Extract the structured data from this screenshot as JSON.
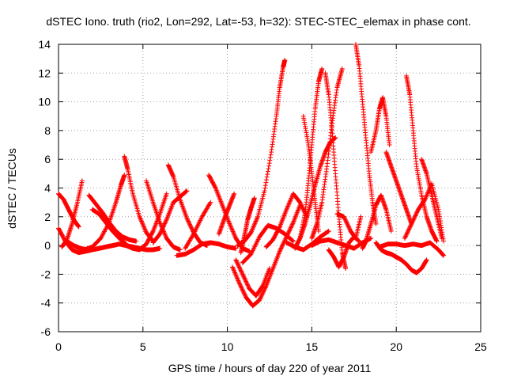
{
  "chart_data": {
    "type": "scatter",
    "title": "dSTEC Iono. truth (rio2, Lon=292, Lat=-53, h=32): STEC-STEC_elemax in phase cont.",
    "xlabel": "GPS time / hours of day 220 of year 2011",
    "ylabel": "dSTEC  / TECUs",
    "xlim": [
      0,
      25
    ],
    "ylim": [
      -6,
      14
    ],
    "xticks": [
      0,
      5,
      10,
      15,
      20,
      25
    ],
    "yticks": [
      -6,
      -4,
      -2,
      0,
      2,
      4,
      6,
      8,
      10,
      12,
      14
    ],
    "grid": true,
    "marker": "+",
    "color": "#ff0000",
    "series": [
      {
        "x": [
          0.0,
          0.3,
          0.6,
          0.9,
          1.2
        ],
        "y": [
          3.6,
          3.2,
          2.5,
          1.8,
          1.3
        ]
      },
      {
        "x": [
          0.0,
          0.4,
          0.8,
          1.2,
          1.6,
          2.0,
          2.4,
          2.8,
          3.2,
          3.6,
          4.0,
          4.4,
          4.8,
          5.2,
          5.6,
          6.0
        ],
        "y": [
          1.2,
          0.3,
          -0.3,
          -0.5,
          -0.4,
          -0.3,
          -0.2,
          -0.1,
          0.0,
          0.1,
          0.0,
          -0.1,
          -0.2,
          -0.3,
          -0.3,
          -0.2
        ]
      },
      {
        "x": [
          0.2,
          0.5,
          0.8,
          1.1,
          1.4
        ],
        "y": [
          -0.1,
          0.4,
          1.5,
          2.9,
          4.5
        ]
      },
      {
        "x": [
          0.5,
          0.9,
          1.3,
          1.7
        ],
        "y": [
          0.3,
          0.0,
          -0.2,
          -0.3
        ]
      },
      {
        "x": [
          1.8,
          2.2,
          2.6,
          3.0,
          3.4,
          3.8,
          4.2,
          4.6
        ],
        "y": [
          3.5,
          2.9,
          2.3,
          1.6,
          1.0,
          0.6,
          0.4,
          0.3
        ]
      },
      {
        "x": [
          1.5,
          2.0,
          2.5,
          3.0,
          3.4,
          3.7,
          3.9
        ],
        "y": [
          -0.3,
          -0.1,
          0.5,
          1.6,
          3.0,
          4.2,
          4.9
        ]
      },
      {
        "x": [
          2.0,
          2.4,
          2.8,
          3.2,
          3.6,
          4.0
        ],
        "y": [
          2.5,
          2.2,
          1.6,
          1.0,
          0.5,
          0.1
        ]
      },
      {
        "x": [
          3.9,
          4.1,
          4.4,
          4.8,
          5.2,
          5.6
        ],
        "y": [
          6.2,
          5.3,
          3.6,
          2.0,
          0.9,
          0.3
        ]
      },
      {
        "x": [
          4.0,
          4.4,
          4.8,
          5.2,
          5.6,
          6.0,
          6.4
        ],
        "y": [
          0.0,
          -0.2,
          -0.3,
          0.1,
          1.0,
          2.2,
          3.6
        ]
      },
      {
        "x": [
          5.2,
          5.6,
          6.0,
          6.4,
          6.8,
          7.2
        ],
        "y": [
          4.5,
          3.0,
          1.6,
          0.5,
          -0.1,
          -0.3
        ]
      },
      {
        "x": [
          5.6,
          6.0,
          6.4,
          6.8,
          7.2,
          7.6
        ],
        "y": [
          0.2,
          0.8,
          1.8,
          3.0,
          3.4,
          3.8
        ]
      },
      {
        "x": [
          6.5,
          6.8,
          7.2,
          7.6,
          8.0,
          8.4,
          8.8
        ],
        "y": [
          5.6,
          4.8,
          3.2,
          1.9,
          0.9,
          0.2,
          0.0
        ]
      },
      {
        "x": [
          7.0,
          7.5,
          8.0,
          8.5,
          9.0,
          9.5,
          10.0,
          10.5
        ],
        "y": [
          -0.7,
          -0.6,
          -0.3,
          0.1,
          0.2,
          0.1,
          -0.1,
          -0.2
        ]
      },
      {
        "x": [
          7.5,
          8.0,
          8.5,
          9.0
        ],
        "y": [
          -0.2,
          0.8,
          2.0,
          3.0
        ]
      },
      {
        "x": [
          8.9,
          9.3,
          9.7,
          10.1,
          10.5,
          10.9,
          11.3
        ],
        "y": [
          4.9,
          4.0,
          2.8,
          1.6,
          0.5,
          -0.2,
          -0.4
        ]
      },
      {
        "x": [
          9.5,
          9.8,
          10.1,
          10.4
        ],
        "y": [
          0.8,
          1.8,
          2.7,
          3.6
        ]
      },
      {
        "x": [
          10.3,
          10.7,
          11.1,
          11.5,
          11.9,
          12.3,
          12.7,
          13.1,
          13.5,
          13.9,
          14.3
        ],
        "y": [
          -1.5,
          -2.6,
          -3.6,
          -4.2,
          -3.8,
          -2.8,
          -1.6,
          -0.4,
          0.6,
          1.6,
          2.8
        ]
      },
      {
        "x": [
          10.5,
          10.9,
          11.3,
          11.7,
          12.1,
          12.5
        ],
        "y": [
          -1.0,
          -2.0,
          -3.0,
          -3.5,
          -2.8,
          -1.6
        ]
      },
      {
        "x": [
          10.8,
          11.0,
          11.2,
          11.4,
          11.6
        ],
        "y": [
          -0.5,
          0.6,
          1.8,
          2.6,
          3.3
        ]
      },
      {
        "x": [
          10.9,
          11.4,
          11.9,
          12.4,
          12.9,
          13.4,
          13.9
        ],
        "y": [
          -1.2,
          -0.6,
          0.6,
          1.4,
          1.2,
          0.8,
          0.3
        ]
      },
      {
        "x": [
          10.6,
          11.0,
          11.4,
          11.8,
          12.2,
          12.6,
          12.9,
          13.1,
          13.3,
          13.4
        ],
        "y": [
          0.0,
          0.3,
          0.9,
          2.0,
          3.8,
          6.5,
          9.0,
          11.0,
          12.4,
          12.9
        ]
      },
      {
        "x": [
          12.3,
          12.7,
          13.1,
          13.5,
          13.9,
          14.3,
          14.7
        ],
        "y": [
          -0.1,
          0.4,
          1.3,
          2.5,
          3.6,
          3.0,
          2.0
        ]
      },
      {
        "x": [
          14.0,
          14.3,
          14.6,
          14.8,
          15.0,
          15.2,
          15.4,
          15.6
        ],
        "y": [
          -0.2,
          0.5,
          2.2,
          4.5,
          7.0,
          9.5,
          11.4,
          12.3
        ]
      },
      {
        "x": [
          14.3,
          14.6,
          14.9,
          15.2,
          15.5,
          15.8,
          16.1,
          16.4
        ],
        "y": [
          0.5,
          1.5,
          2.8,
          4.2,
          5.5,
          6.5,
          7.2,
          7.5
        ]
      },
      {
        "x": [
          14.5,
          14.8,
          15.0,
          15.2,
          15.4
        ],
        "y": [
          9.0,
          7.0,
          5.0,
          3.0,
          1.0
        ]
      },
      {
        "x": [
          15.0,
          15.3,
          15.6,
          15.9,
          16.2,
          16.5,
          16.8
        ],
        "y": [
          0.5,
          1.5,
          3.0,
          5.5,
          8.5,
          11.0,
          12.3
        ]
      },
      {
        "x": [
          15.8,
          16.0,
          16.2,
          16.4,
          16.6,
          16.8,
          17.0
        ],
        "y": [
          12.0,
          10.5,
          8.0,
          5.0,
          2.0,
          -0.5,
          -1.6
        ]
      },
      {
        "x": [
          16.0,
          16.3,
          16.6,
          16.9,
          17.2,
          17.5,
          17.8
        ],
        "y": [
          -0.3,
          -0.8,
          -1.5,
          -0.8,
          0.2,
          0.6,
          0.3
        ]
      },
      {
        "x": [
          16.5,
          16.9,
          17.3,
          17.6,
          17.9
        ],
        "y": [
          2.2,
          2.0,
          1.0,
          0.5,
          2.0
        ]
      },
      {
        "x": [
          17.6,
          17.8,
          18.0,
          18.2,
          18.4,
          18.6,
          18.8
        ],
        "y": [
          14.0,
          12.5,
          10.0,
          7.5,
          5.0,
          3.0,
          1.5
        ]
      },
      {
        "x": [
          18.0,
          18.2,
          18.5,
          18.8,
          19.1,
          19.4,
          19.7
        ],
        "y": [
          -0.2,
          0.3,
          1.5,
          2.8,
          3.5,
          2.5,
          1.0
        ]
      },
      {
        "x": [
          18.5,
          18.8,
          19.0,
          19.2,
          19.4,
          19.6
        ],
        "y": [
          6.5,
          8.0,
          9.5,
          10.3,
          9.0,
          7.0
        ]
      },
      {
        "x": [
          18.8,
          19.1,
          19.4,
          19.7,
          20.0,
          20.3,
          20.6,
          20.9,
          21.2,
          21.5,
          21.8
        ],
        "y": [
          0.2,
          -0.3,
          -0.5,
          -0.6,
          -0.8,
          -1.0,
          -1.3,
          -1.7,
          -1.9,
          -1.6,
          -1.0
        ]
      },
      {
        "x": [
          19.4,
          19.7,
          20.0,
          20.3,
          20.6,
          20.9
        ],
        "y": [
          6.5,
          5.5,
          4.5,
          3.5,
          2.5,
          1.5
        ]
      },
      {
        "x": [
          20.6,
          20.8,
          21.0,
          21.2,
          21.5,
          21.8,
          22.1,
          22.4
        ],
        "y": [
          11.8,
          10.5,
          8.0,
          5.5,
          3.5,
          2.0,
          1.0,
          0.3
        ]
      },
      {
        "x": [
          20.5,
          20.9,
          21.3,
          21.7,
          22.1,
          22.5,
          22.8
        ],
        "y": [
          0.5,
          1.5,
          2.5,
          3.2,
          4.3,
          2.5,
          0.3
        ]
      },
      {
        "x": [
          21.5,
          21.8,
          22.1,
          22.4,
          22.7
        ],
        "y": [
          6.0,
          5.0,
          3.5,
          2.0,
          0.5
        ]
      },
      {
        "x": [
          19.0,
          19.5,
          20.0,
          20.5,
          21.0,
          21.5,
          22.0,
          22.5,
          22.8
        ],
        "y": [
          -0.1,
          0.1,
          0.1,
          0.0,
          0.1,
          0.0,
          0.2,
          -0.3,
          -0.7
        ]
      },
      {
        "x": [
          15.0,
          15.5,
          16.0,
          16.5,
          17.0,
          17.5,
          18.0,
          18.5
        ],
        "y": [
          0.0,
          0.3,
          0.4,
          0.2,
          0.0,
          -0.2,
          0.2,
          0.5
        ]
      },
      {
        "x": [
          13.5,
          14.0,
          14.5,
          15.0,
          15.5,
          16.0
        ],
        "y": [
          0.2,
          -0.1,
          -0.3,
          0.1,
          0.6,
          1.0
        ]
      }
    ]
  }
}
